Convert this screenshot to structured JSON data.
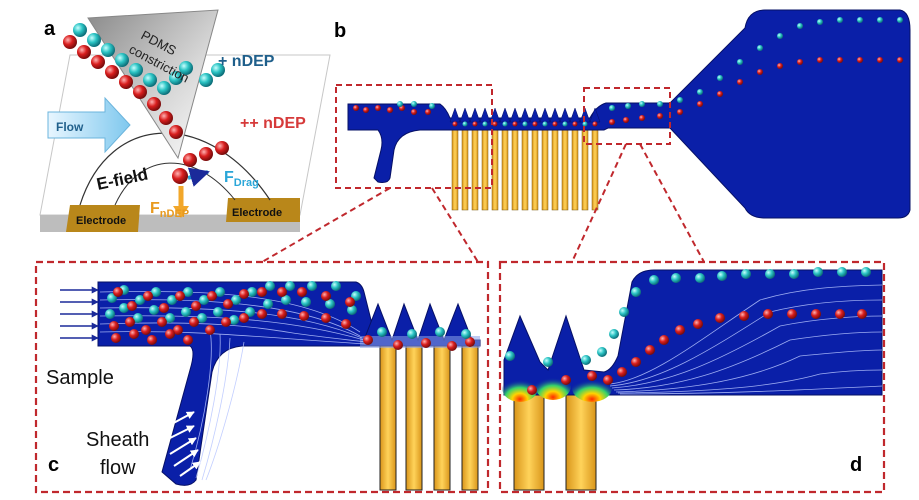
{
  "panel_labels": {
    "a": "a",
    "b": "b",
    "c": "c",
    "d": "d"
  },
  "panel_a": {
    "pdms_line1": "PDMS",
    "pdms_line2": "constriction",
    "plus_ndep": "+ nDEP",
    "plusplus_ndep": "++ nDEP",
    "flow": "Flow",
    "efield": "E-field",
    "fdrag_main": "F",
    "fdrag_sub": "Drag",
    "fndep_main": "F",
    "fndep_sub": "nDEP",
    "electrode_left": "Electrode",
    "electrode_right": "Electrode"
  },
  "panel_c": {
    "sample": "Sample",
    "sheath_line1": "Sheath",
    "sheath_line2": "flow"
  },
  "colors": {
    "channel_blue": "#0a1fa8",
    "deep_blue": "#06137a",
    "electrode_gold": "#f5b82e",
    "cyan_particle": "#2bc4c4",
    "red_particle": "#d91e1e",
    "dashed_red": "#c0282d",
    "ndep_blue_text": "#1f5f8b",
    "ndep_red_text": "#d63a3a",
    "flow_arrow": "#8fd3f0"
  }
}
